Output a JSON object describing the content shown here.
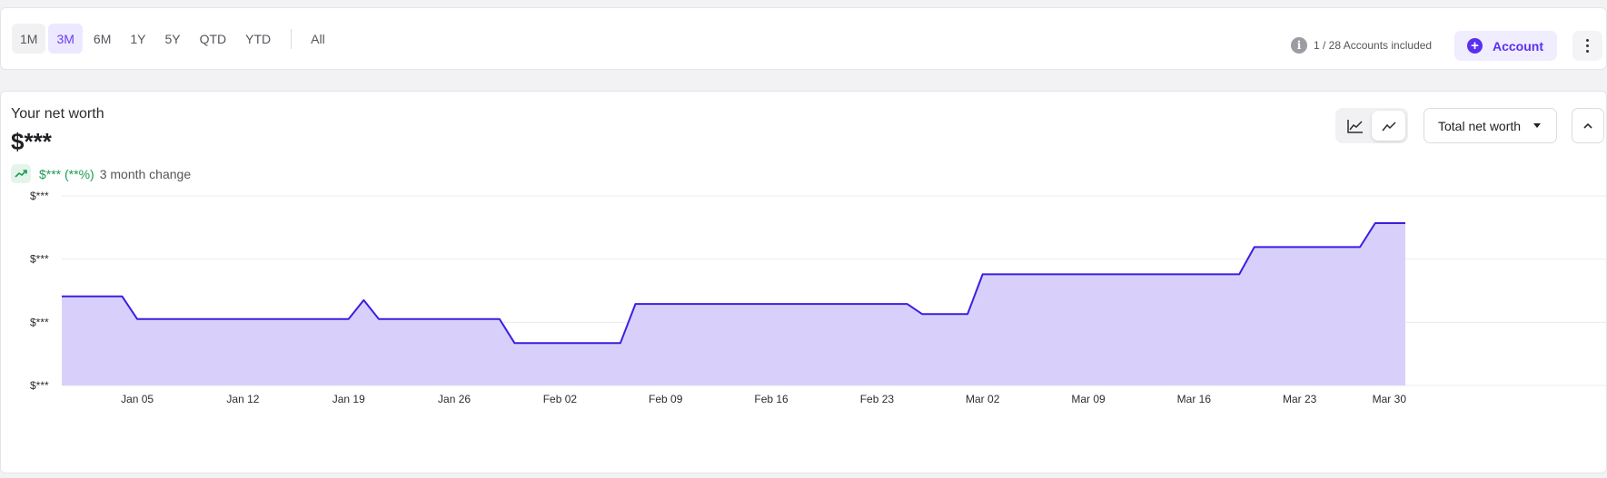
{
  "toolbar": {
    "ranges": [
      "1M",
      "3M",
      "6M",
      "1Y",
      "5Y",
      "QTD",
      "YTD"
    ],
    "all_label": "All",
    "active_range": "3M",
    "accounts_included": "1 / 28 Accounts included",
    "account_button": "Account"
  },
  "networth": {
    "title": "Your net worth",
    "value": "$***",
    "change_value": "$*** (**%)",
    "change_label": "3 month change",
    "view_select": "Total net worth"
  },
  "colors": {
    "accent": "#5a2ff0",
    "line": "#3b1fe0",
    "area": "#d8d0fb",
    "positive": "#1e9a52"
  },
  "icons": {
    "info": "info-icon",
    "add": "plus-circle-icon",
    "more": "kebab-icon",
    "trend": "trend-up-icon",
    "chart_axis": "line-chart-axis-icon",
    "chart_trend": "trend-line-icon",
    "collapse": "chevron-up-icon"
  },
  "chart_data": {
    "type": "area",
    "y_tick_labels": [
      "$***",
      "$***",
      "$***",
      "$***"
    ],
    "x_tick_labels": [
      "Jan 05",
      "Jan 12",
      "Jan 19",
      "Jan 26",
      "Feb 02",
      "Feb 09",
      "Feb 16",
      "Feb 23",
      "Mar 02",
      "Mar 09",
      "Mar 16",
      "Mar 23",
      "Mar 30"
    ],
    "x_start": "Dec 31",
    "ylim": [
      0,
      3
    ],
    "grid": true,
    "series": [
      {
        "values_note": "relative values on 0-3 scale (masked currency)",
        "points": [
          [
            "Dec 31",
            1.41
          ],
          [
            "Jan 04",
            1.41
          ],
          [
            "Jan 05",
            1.05
          ],
          [
            "Jan 19",
            1.05
          ],
          [
            "Jan 20",
            1.35
          ],
          [
            "Jan 21",
            1.05
          ],
          [
            "Jan 29",
            1.05
          ],
          [
            "Jan 30",
            0.67
          ],
          [
            "Feb 06",
            0.67
          ],
          [
            "Feb 07",
            1.29
          ],
          [
            "Feb 25",
            1.29
          ],
          [
            "Feb 26",
            1.13
          ],
          [
            "Mar 01",
            1.13
          ],
          [
            "Mar 02",
            1.76
          ],
          [
            "Mar 19",
            1.76
          ],
          [
            "Mar 20",
            2.19
          ],
          [
            "Mar 27",
            2.19
          ],
          [
            "Mar 28",
            2.57
          ],
          [
            "Mar 30",
            2.57
          ]
        ]
      }
    ]
  }
}
